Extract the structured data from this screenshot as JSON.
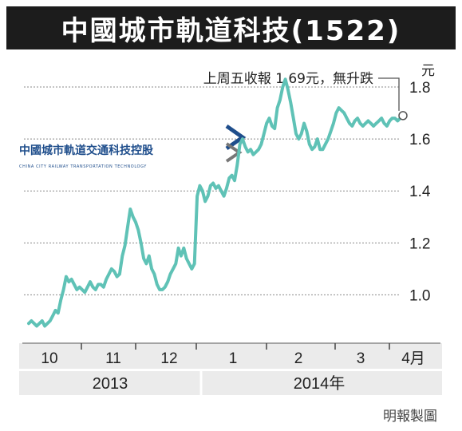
{
  "title": "中國城市軌道科技(1522)",
  "logo": {
    "name_cn": "中國城市軌道交通科技控股",
    "name_en": "CHINA CITY RAILWAY TRANSPORTATION TECHNOLOGY",
    "color": "#1f4e8c"
  },
  "credit": "明報製圖",
  "colors": {
    "line": "#5fc2b6",
    "grid": "#8a8a8a",
    "band": "#ebebeb",
    "title_bg": "#1c1c1c"
  },
  "chart_data": {
    "type": "line",
    "title": "中國城市軌道科技(1522)",
    "ylabel": "元",
    "ylim": [
      0.82,
      1.92
    ],
    "yticks": [
      1.0,
      1.2,
      1.4,
      1.6,
      1.8
    ],
    "ytick_labels": [
      "1.0",
      "1.2",
      "1.4",
      "1.6",
      "1.8"
    ],
    "month_labels": [
      "10",
      "11",
      "12",
      "1",
      "2",
      "3",
      "4月"
    ],
    "year_labels": [
      "2013",
      "2014年"
    ],
    "annotation": "上周五收報 1.69元，無升跌",
    "last_value": 1.69,
    "grid": true,
    "series": [
      {
        "x": [
          0,
          1,
          2,
          3,
          4,
          5,
          6,
          7,
          8,
          9,
          10,
          11,
          12,
          13,
          14,
          15,
          16,
          17,
          18,
          19,
          20,
          21,
          22,
          23,
          24,
          25,
          26,
          27,
          28,
          29,
          30,
          31,
          32,
          33,
          34,
          35,
          36,
          37,
          38,
          39,
          40,
          41,
          42,
          43,
          44,
          45,
          46,
          47,
          48,
          49,
          50,
          51,
          52,
          53,
          54,
          55,
          56,
          57,
          58,
          59,
          60,
          61,
          62,
          63,
          64,
          65,
          66,
          67,
          68,
          69,
          70,
          71,
          72,
          73,
          74,
          75,
          76,
          77,
          78,
          79,
          80,
          81,
          82,
          83,
          84,
          85,
          86,
          87,
          88,
          89,
          90,
          91,
          92,
          93,
          94,
          95,
          96,
          97,
          98,
          99,
          100,
          101,
          102,
          103,
          104,
          105,
          106,
          107,
          108,
          109,
          110,
          111,
          112,
          113,
          114,
          115,
          116,
          117,
          118,
          119,
          120,
          121,
          122,
          123,
          124,
          125,
          126,
          127,
          128,
          129,
          130,
          131,
          132,
          133,
          134,
          135,
          136,
          137,
          138,
          139,
          140
        ],
        "values": [
          0.89,
          0.9,
          0.89,
          0.88,
          0.89,
          0.9,
          0.88,
          0.89,
          0.9,
          0.92,
          0.94,
          0.93,
          0.98,
          1.02,
          1.07,
          1.05,
          1.06,
          1.04,
          1.02,
          1.03,
          1.02,
          1.01,
          1.03,
          1.05,
          1.03,
          1.02,
          1.04,
          1.04,
          1.03,
          1.06,
          1.08,
          1.1,
          1.09,
          1.07,
          1.08,
          1.15,
          1.19,
          1.26,
          1.33,
          1.3,
          1.28,
          1.25,
          1.2,
          1.14,
          1.12,
          1.15,
          1.1,
          1.08,
          1.04,
          1.02,
          1.02,
          1.03,
          1.05,
          1.08,
          1.1,
          1.12,
          1.18,
          1.15,
          1.18,
          1.14,
          1.12,
          1.1,
          1.12,
          1.38,
          1.42,
          1.4,
          1.36,
          1.38,
          1.42,
          1.43,
          1.41,
          1.42,
          1.4,
          1.38,
          1.41,
          1.45,
          1.46,
          1.44,
          1.5,
          1.58,
          1.6,
          1.57,
          1.55,
          1.56,
          1.54,
          1.55,
          1.56,
          1.58,
          1.62,
          1.66,
          1.68,
          1.65,
          1.64,
          1.72,
          1.75,
          1.8,
          1.83,
          1.79,
          1.74,
          1.68,
          1.62,
          1.6,
          1.62,
          1.66,
          1.63,
          1.58,
          1.56,
          1.57,
          1.6,
          1.56,
          1.56,
          1.58,
          1.6,
          1.63,
          1.66,
          1.7,
          1.72,
          1.71,
          1.7,
          1.68,
          1.66,
          1.65,
          1.67,
          1.68,
          1.66,
          1.65,
          1.66,
          1.67,
          1.66,
          1.65,
          1.66,
          1.67,
          1.68,
          1.66,
          1.65,
          1.67,
          1.68,
          1.68,
          1.67,
          1.68,
          1.69
        ]
      }
    ]
  }
}
